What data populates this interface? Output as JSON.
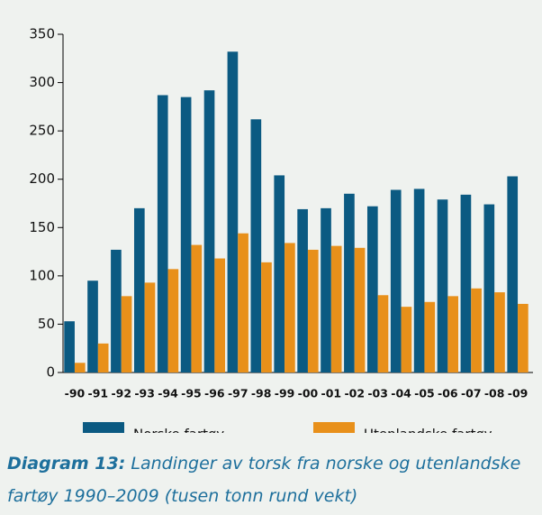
{
  "chart_data": {
    "type": "bar",
    "categories": [
      "-90",
      "-91",
      "-92",
      "-93",
      "-94",
      "-95",
      "-96",
      "-97",
      "-98",
      "-99",
      "-00",
      "-01",
      "-02",
      "-03",
      "-04",
      "-05",
      "-06",
      "-07",
      "-08",
      "-09"
    ],
    "series": [
      {
        "name": "Norske fartøy",
        "color": "#0b5a82",
        "values": [
          53,
          95,
          127,
          170,
          287,
          285,
          292,
          332,
          262,
          204,
          169,
          170,
          185,
          172,
          189,
          190,
          179,
          184,
          174,
          203
        ]
      },
      {
        "name": "Utenlandske fartøy",
        "color": "#e8901a",
        "values": [
          10,
          30,
          79,
          93,
          107,
          132,
          118,
          144,
          114,
          134,
          127,
          131,
          129,
          80,
          68,
          73,
          79,
          87,
          83,
          71
        ]
      }
    ],
    "ylim": [
      0,
      350
    ],
    "yticks": [
      0,
      50,
      100,
      150,
      200,
      250,
      300,
      350
    ],
    "grid": false,
    "caption_label": "Diagram 13:",
    "caption": "Landinger av torsk fra norske og utenlandske fartøy 1990–2009 (tusen tonn rund vekt)"
  }
}
